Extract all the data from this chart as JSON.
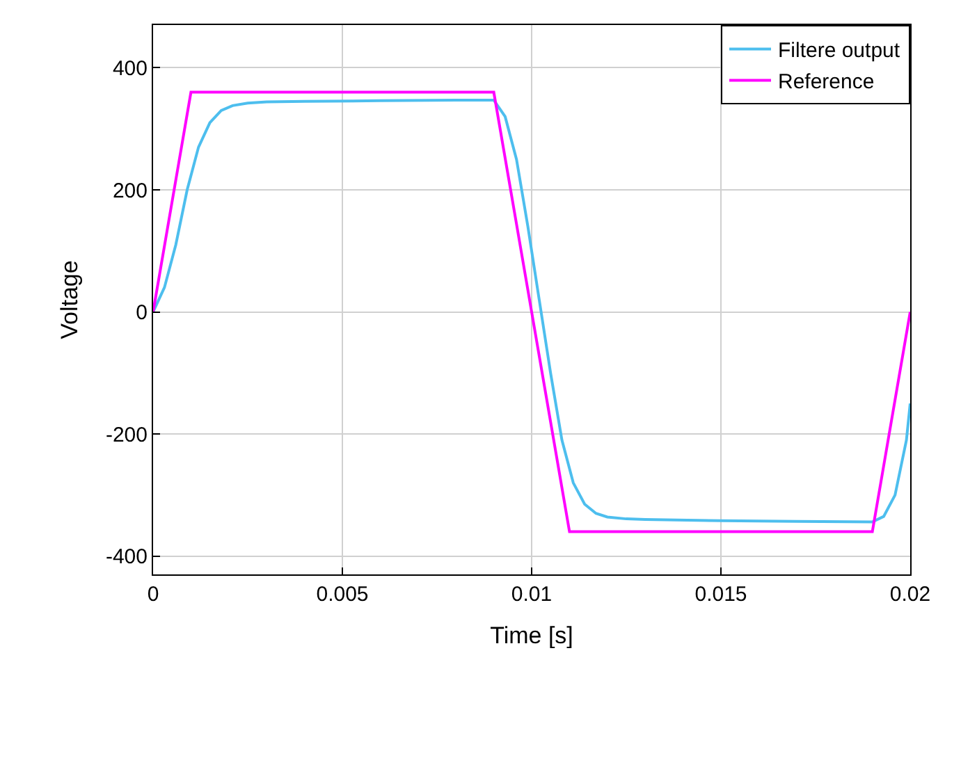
{
  "chart_data": {
    "type": "line",
    "xlabel": "Time [s]",
    "ylabel": "Voltage",
    "xlim": [
      0,
      0.02
    ],
    "ylim": [
      -430,
      470
    ],
    "xticks": [
      0,
      0.005,
      0.01,
      0.015,
      0.02
    ],
    "yticks": [
      -400,
      -200,
      0,
      200,
      400
    ],
    "grid": true,
    "legend": "top right",
    "line_style": "solid",
    "marker": "none",
    "series": [
      {
        "name": "Filtere output",
        "color": "#4dbeee",
        "x": [
          0,
          0.0003,
          0.0006,
          0.0009,
          0.0012,
          0.0015,
          0.0018,
          0.0021,
          0.0025,
          0.003,
          0.004,
          0.006,
          0.008,
          0.009,
          0.0093,
          0.0096,
          0.0099,
          0.0102,
          0.0105,
          0.0108,
          0.0111,
          0.0114,
          0.0117,
          0.012,
          0.0125,
          0.013,
          0.015,
          0.017,
          0.019,
          0.0193,
          0.0196,
          0.0199,
          0.02
        ],
        "values": [
          0,
          40,
          110,
          200,
          270,
          310,
          330,
          338,
          342,
          344,
          345,
          346,
          347,
          347,
          320,
          250,
          140,
          20,
          -100,
          -210,
          -280,
          -315,
          -330,
          -336,
          -339,
          -340,
          -342,
          -343,
          -344,
          -335,
          -300,
          -210,
          -150
        ]
      },
      {
        "name": "Reference",
        "color": "#ff00ff",
        "x": [
          0,
          0.001,
          0.009,
          0.011,
          0.019,
          0.02
        ],
        "values": [
          0,
          360,
          360,
          -360,
          -360,
          0
        ]
      }
    ]
  }
}
